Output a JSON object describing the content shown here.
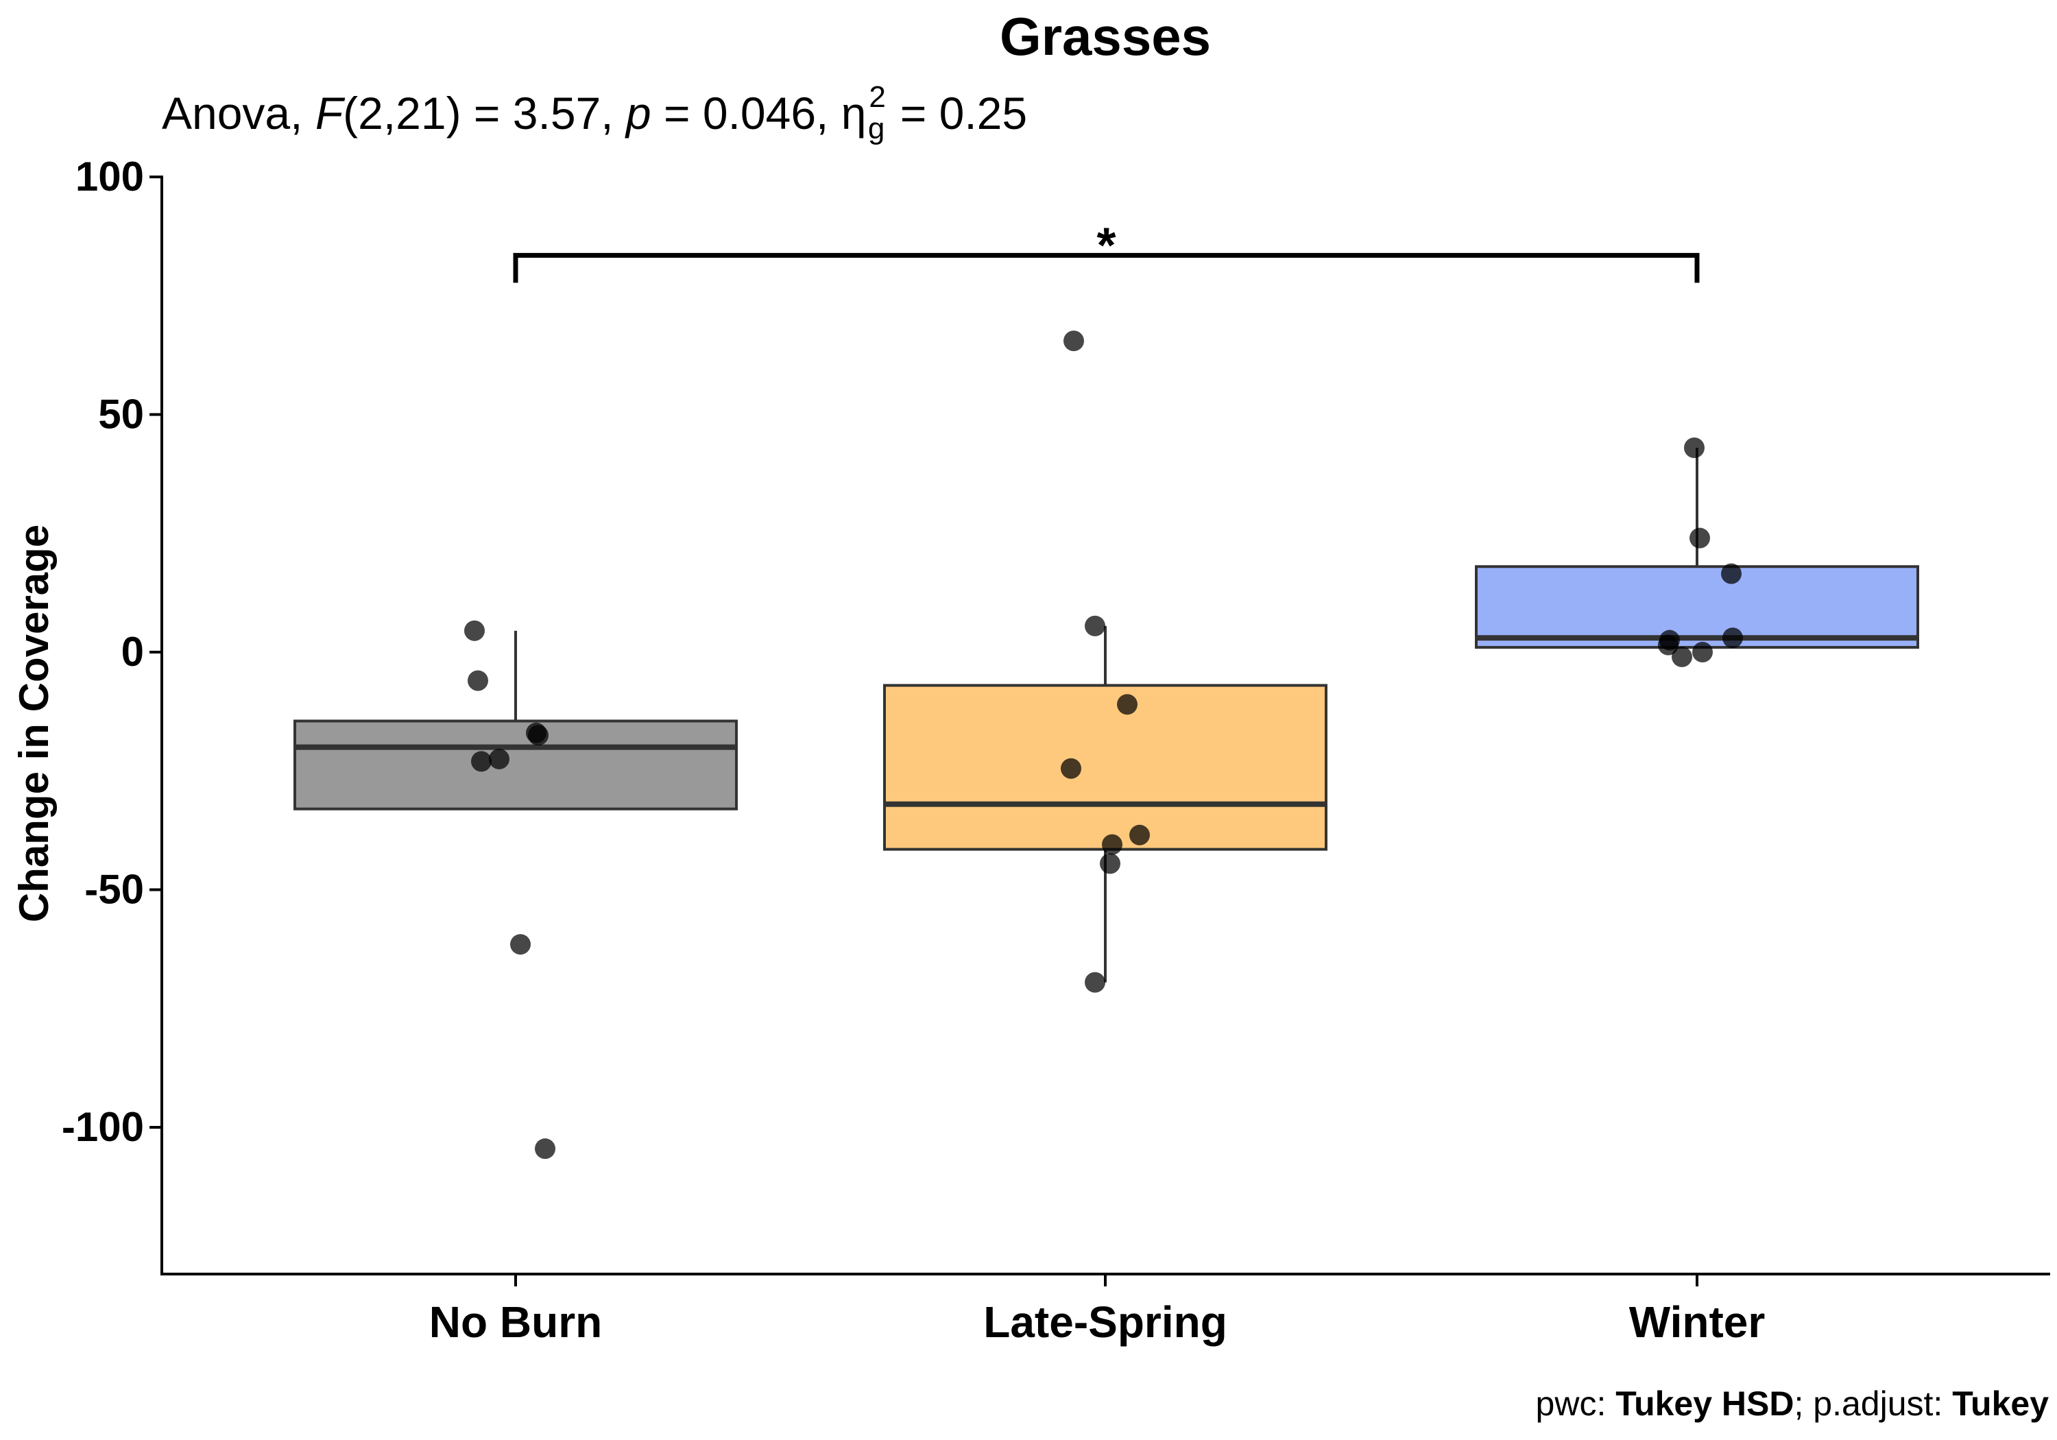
{
  "chart_data": {
    "type": "box",
    "title": "Grasses",
    "subtitle": {
      "prefix": "Anova, ",
      "f_symbol": "F",
      "f_args": "(2,21) = 3.57, ",
      "p_symbol": "p",
      "p_value": " = 0.046, ",
      "eta": "η",
      "eta_sub": "g",
      "eta_sup": "2",
      "eta_value": " = 0.25"
    },
    "ylabel": "Change in Coverage",
    "xlabel": "",
    "ylim": [
      -130,
      100
    ],
    "yticks": [
      100,
      50,
      0,
      -50,
      -100
    ],
    "grid": false,
    "categories": [
      "No Burn",
      "Late-Spring",
      "Winter"
    ],
    "series": [
      {
        "category": "No Burn",
        "color": "#999999",
        "box": {
          "lower_whisker": -33,
          "q1": -33,
          "median": -20,
          "q3": -14.5,
          "upper_whisker": 4.5
        },
        "points": [
          4.5,
          -6,
          -17,
          -17.5,
          -23,
          -22.5,
          -61.5,
          -104.5
        ]
      },
      {
        "category": "Late-Spring",
        "color": "#FFC97D",
        "box": {
          "lower_whisker": -69.5,
          "q1": -41.5,
          "median": -32,
          "q3": -7,
          "upper_whisker": 5.5
        },
        "points": [
          65.5,
          5.5,
          -11,
          -24.5,
          -38.5,
          -40.5,
          -44.5,
          -69.5
        ]
      },
      {
        "category": "Winter",
        "color": "#98B0F8",
        "box": {
          "lower_whisker": 1,
          "q1": 1,
          "median": 3,
          "q3": 18,
          "upper_whisker": 43
        },
        "points": [
          43,
          24,
          16.5,
          3,
          2.5,
          1.5,
          0,
          -1
        ]
      }
    ],
    "significance": {
      "from": "No Burn",
      "to": "Winter",
      "y": 83.5,
      "label": "*"
    },
    "caption": {
      "pwc_label": "pwc: ",
      "pwc_value": "Tukey HSD",
      "sep": "; p.adjust: ",
      "adjust_value": "Tukey"
    }
  }
}
